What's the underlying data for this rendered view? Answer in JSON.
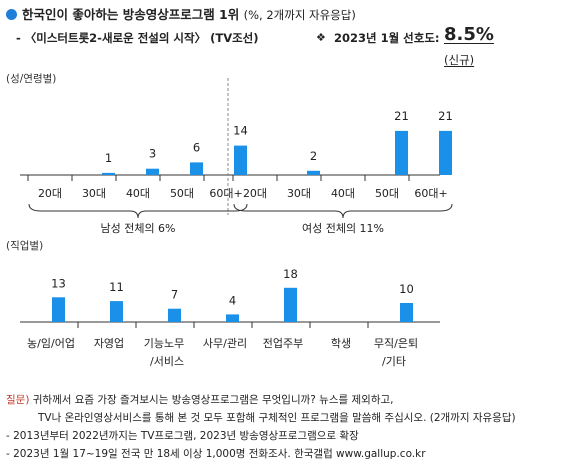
{
  "header": {
    "title": "한국인이 좋아하는 방송영상프로그램 1위",
    "title_note": "(%, 2개까지 자유응답)",
    "subtitle": "- 〈미스터트롯2-새로운 전설의 시작〉 (TV조선)",
    "survey_mark": "❖",
    "survey_label": "2023년 1월 선호도:",
    "headline_value": "8.5%",
    "new_tag": "(신규)"
  },
  "sections": {
    "gender_label": "(성/연령별)",
    "job_label": "(직업별)"
  },
  "colors": {
    "bar": "#1a90e8",
    "accent": "#1f7fd8",
    "axis": "#333333"
  },
  "chart_data": [
    {
      "type": "bar",
      "groups": [
        {
          "label": "남성 전체의 6%",
          "categories": [
            "20대",
            "30대",
            "40대",
            "50대",
            "60대+"
          ],
          "values": [
            null,
            1,
            3,
            6,
            14
          ],
          "value_labels": [
            "",
            "1",
            "3",
            "6",
            "14"
          ]
        },
        {
          "label": "여성 전체의 11%",
          "categories": [
            "20대",
            "30대",
            "40대",
            "50대",
            "60대+"
          ],
          "values": [
            null,
            2,
            null,
            21,
            21
          ],
          "value_labels": [
            "",
            "2",
            "",
            "21",
            "21"
          ]
        }
      ],
      "ylim": [
        0,
        25
      ]
    },
    {
      "type": "bar",
      "categories": [
        "농/임/어업",
        "자영업",
        "기능노무\n/서비스",
        "사무/관리",
        "전업주부",
        "학생",
        "무직/은퇴\n/기타"
      ],
      "values": [
        13,
        11,
        7,
        4,
        18,
        null,
        10
      ],
      "value_labels": [
        "13",
        "11",
        "7",
        "4",
        "18",
        "",
        "10"
      ],
      "ylim": [
        0,
        22
      ]
    }
  ],
  "footnotes": {
    "q_tag": "질문)",
    "q1": "귀하께서 요즘 가장 즐겨보시는 방송영상프로그램은 무엇입니까? 뉴스를 제외하고,",
    "q2": "TV나 온라인영상서비스를 통해 본 것 모두 포함해 구체적인 프로그램을 말씀해 주십시오. (2개까지 자유응답)",
    "n1": "- 2013년부터 2022년까지는 TV프로그램, 2023년 방송영상프로그램으로 확장",
    "n2": "- 2023년 1월 17~19일 전국 만 18세 이상 1,000명 전화조사. 한국갤럽 www.gallup.co.kr"
  }
}
